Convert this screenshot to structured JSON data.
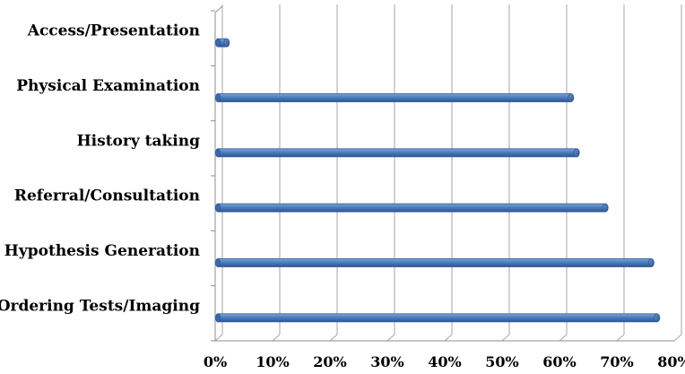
{
  "chart_data": {
    "type": "bar",
    "orientation": "horizontal",
    "categories": [
      "Ordering Tests/Imaging",
      "Hypothesis Generation",
      "Referral/Consultation",
      "History taking",
      "Physical Examination",
      "Access/Presentation"
    ],
    "values": [
      0.77,
      0.76,
      0.68,
      0.63,
      0.62,
      0.02
    ],
    "xlim": [
      0,
      0.8
    ],
    "x_ticks": [
      0,
      0.1,
      0.2,
      0.3,
      0.4,
      0.5,
      0.6,
      0.7,
      0.8
    ],
    "x_tick_labels": [
      "0%",
      "10%",
      "20%",
      "30%",
      "40%",
      "50%",
      "60%",
      "70%",
      "80%"
    ],
    "grid": true,
    "title": "",
    "xlabel": "",
    "ylabel": "",
    "bar_color": "#4a7ebb",
    "bar_edge_color": "#2f5597"
  }
}
